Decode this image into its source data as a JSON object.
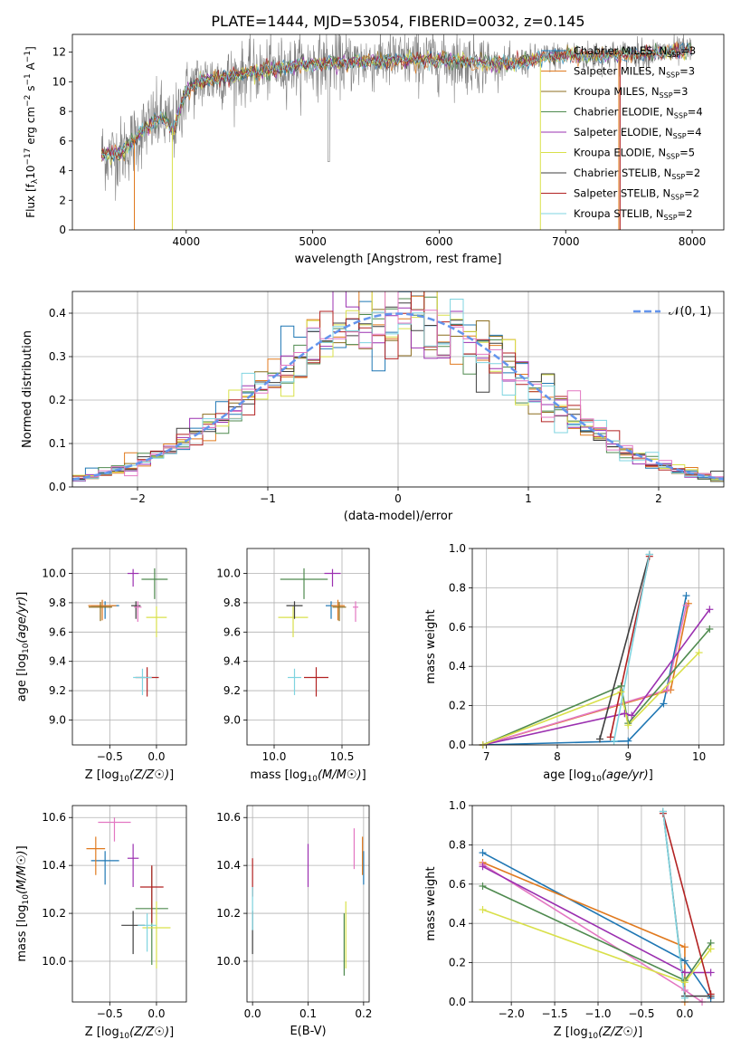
{
  "figure": {
    "title": "PLATE=1444, MJD=53054, FIBERID=0032, z=0.145"
  },
  "colors": {
    "data": "#7f7f7f",
    "fits": [
      "#1f77b4",
      "#e07a1f",
      "#8c6d1f",
      "#4f8a4f",
      "#9b30b0",
      "#d9e04a",
      "#3f3f3f",
      "#b22222",
      "#7fd4e0"
    ],
    "normal": "#6495ed"
  },
  "chart_data": [
    {
      "id": "spectrum",
      "type": "line",
      "title": "PLATE=1444, MJD=53054, FIBERID=0032, z=0.145",
      "xlabel": "wavelength [Angstrom, rest frame]",
      "ylabel": "Flux [f_λ 10^-17 erg cm^-2 s^-1 A^-1]",
      "xlim": [
        3100,
        8250
      ],
      "ylim": [
        0,
        13.2
      ],
      "xticks": [
        4000,
        5000,
        6000,
        7000,
        8000
      ],
      "yticks": [
        0,
        2,
        4,
        6,
        8,
        10,
        12
      ],
      "grid": false,
      "legend_position": "top-right",
      "series": [
        {
          "name": "Chabrier MILES, N_SSP=3",
          "color": "#1f77b4"
        },
        {
          "name": "Salpeter MILES, N_SSP=3",
          "color": "#e07a1f"
        },
        {
          "name": "Kroupa MILES, N_SSP=3",
          "color": "#8c6d1f"
        },
        {
          "name": "Chabrier ELODIE, N_SSP=4",
          "color": "#4f8a4f"
        },
        {
          "name": "Salpeter ELODIE, N_SSP=4",
          "color": "#9b30b0"
        },
        {
          "name": "Kroupa ELODIE, N_SSP=5",
          "color": "#d9e04a"
        },
        {
          "name": "Chabrier STELIB, N_SSP=2",
          "color": "#3f3f3f"
        },
        {
          "name": "Salpeter STELIB, N_SSP=2",
          "color": "#b22222"
        },
        {
          "name": "Kroupa STELIB, N_SSP=2",
          "color": "#7fd4e0"
        }
      ],
      "continuum": {
        "x": [
          3330,
          3400,
          3500,
          3600,
          3700,
          3800,
          3900,
          4000,
          4100,
          4300,
          4500,
          4800,
          5000,
          5200,
          5500,
          5800,
          6000,
          6300,
          6600,
          6800,
          7000,
          7200,
          7400,
          7600,
          7800,
          8000
        ],
        "y": [
          5.2,
          5.0,
          5.3,
          6.2,
          7.0,
          7.6,
          6.8,
          9.4,
          10.0,
          10.3,
          10.6,
          11.0,
          11.2,
          11.3,
          11.4,
          11.5,
          11.5,
          11.3,
          11.2,
          11.6,
          11.8,
          11.7,
          11.8,
          11.9,
          12.0,
          12.1
        ]
      }
    },
    {
      "id": "residuals",
      "type": "bar",
      "xlabel": "(data-model)/error",
      "ylabel": "Normed distribution",
      "xlim": [
        -2.5,
        2.5
      ],
      "ylim": [
        0,
        0.45
      ],
      "xticks": [
        -2,
        -1,
        0,
        1,
        2
      ],
      "yticks": [
        0.0,
        0.1,
        0.2,
        0.3,
        0.4
      ],
      "grid": true,
      "legend_position": "top-right",
      "legend_label": "𝒩(0, 1)",
      "bins": 50,
      "normal": {
        "mean": 0,
        "sigma": 1
      }
    },
    {
      "id": "age_vs_Z",
      "type": "scatter",
      "xlabel": "Z [log10(Z/Z☉)]",
      "ylabel": "age  [log10(age/yr)]",
      "xlim": [
        -0.9,
        0.32
      ],
      "ylim": [
        8.83,
        10.17
      ],
      "xticks": [
        -0.5,
        0.0
      ],
      "yticks": [
        9.0,
        9.2,
        9.4,
        9.6,
        9.8,
        10.0
      ],
      "grid": true,
      "points": [
        {
          "x": -0.55,
          "y": 9.78,
          "dx": 0.3,
          "dy": 0.06,
          "color": "#1f77b4"
        },
        {
          "x": -0.58,
          "y": 9.78,
          "dx": 0.3,
          "dy": 0.08,
          "color": "#e07a1f"
        },
        {
          "x": -0.6,
          "y": 9.77,
          "dx": 0.25,
          "dy": 0.07,
          "color": "#8c6d1f"
        },
        {
          "x": -0.02,
          "y": 9.96,
          "dx": 0.28,
          "dy": 0.15,
          "color": "#4f8a4f"
        },
        {
          "x": -0.25,
          "y": 10.0,
          "dx": 0.12,
          "dy": 0.06,
          "color": "#9b30b0"
        },
        {
          "x": 0.0,
          "y": 9.7,
          "dx": 0.22,
          "dy": 0.15,
          "color": "#d9e04a"
        },
        {
          "x": -0.22,
          "y": 9.78,
          "dx": 0.1,
          "dy": 0.06,
          "color": "#3f3f3f"
        },
        {
          "x": -0.1,
          "y": 9.29,
          "dx": 0.25,
          "dy": 0.14,
          "color": "#b22222"
        },
        {
          "x": -0.15,
          "y": 9.29,
          "dx": 0.2,
          "dy": 0.12,
          "color": "#7fd4e0"
        },
        {
          "x": -0.2,
          "y": 9.77,
          "dx": 0.08,
          "dy": 0.08,
          "color": "#e377c2"
        }
      ]
    },
    {
      "id": "age_vs_mass",
      "type": "scatter",
      "xlabel": "mass [log10(M/M☉)]",
      "ylabel": "",
      "xlim": [
        9.8,
        10.7
      ],
      "ylim": [
        8.83,
        10.17
      ],
      "xticks": [
        10.0,
        10.5
      ],
      "yticks": [
        9.0,
        9.2,
        9.4,
        9.6,
        9.8,
        10.0
      ],
      "grid": true,
      "points": [
        {
          "x": 10.42,
          "y": 9.78,
          "dx": 0.08,
          "dy": 0.06,
          "color": "#1f77b4"
        },
        {
          "x": 10.47,
          "y": 9.78,
          "dx": 0.1,
          "dy": 0.08,
          "color": "#e07a1f"
        },
        {
          "x": 10.48,
          "y": 9.77,
          "dx": 0.1,
          "dy": 0.07,
          "color": "#8c6d1f"
        },
        {
          "x": 10.22,
          "y": 9.96,
          "dx": 0.35,
          "dy": 0.15,
          "color": "#4f8a4f"
        },
        {
          "x": 10.43,
          "y": 10.0,
          "dx": 0.12,
          "dy": 0.06,
          "color": "#9b30b0"
        },
        {
          "x": 10.14,
          "y": 9.7,
          "dx": 0.22,
          "dy": 0.15,
          "color": "#d9e04a"
        },
        {
          "x": 10.15,
          "y": 9.78,
          "dx": 0.12,
          "dy": 0.06,
          "color": "#3f3f3f"
        },
        {
          "x": 10.31,
          "y": 9.29,
          "dx": 0.18,
          "dy": 0.14,
          "color": "#b22222"
        },
        {
          "x": 10.15,
          "y": 9.29,
          "dx": 0.1,
          "dy": 0.12,
          "color": "#7fd4e0"
        },
        {
          "x": 10.6,
          "y": 9.77,
          "dx": 0.04,
          "dy": 0.08,
          "color": "#e377c2"
        }
      ]
    },
    {
      "id": "weight_vs_age",
      "type": "line",
      "xlabel": "age  [log10(age/yr)]",
      "ylabel": "mass weight",
      "xlim": [
        6.8,
        10.35
      ],
      "ylim": [
        0,
        1.0
      ],
      "xticks": [
        7,
        8,
        9,
        10
      ],
      "yticks": [
        0.0,
        0.2,
        0.4,
        0.6,
        0.8,
        1.0
      ],
      "grid": true,
      "series": [
        {
          "color": "#1f77b4",
          "x": [
            6.95,
            9.0,
            9.5,
            9.82
          ],
          "y": [
            0.0,
            0.02,
            0.21,
            0.76
          ]
        },
        {
          "color": "#e07a1f",
          "x": [
            6.95,
            9.6,
            9.85
          ],
          "y": [
            0.0,
            0.28,
            0.72
          ]
        },
        {
          "color": "#e377c2",
          "x": [
            6.95,
            9.55,
            9.82
          ],
          "y": [
            0.0,
            0.28,
            0.71
          ]
        },
        {
          "color": "#4f8a4f",
          "x": [
            6.95,
            8.9,
            9.0,
            10.15
          ],
          "y": [
            0.0,
            0.3,
            0.11,
            0.59
          ]
        },
        {
          "color": "#9b30b0",
          "x": [
            6.95,
            8.95,
            9.05,
            10.15
          ],
          "y": [
            0.0,
            0.16,
            0.15,
            0.69
          ]
        },
        {
          "color": "#d9e04a",
          "x": [
            6.95,
            8.9,
            9.0,
            10.0
          ],
          "y": [
            0.0,
            0.27,
            0.1,
            0.47
          ]
        },
        {
          "color": "#3f3f3f",
          "x": [
            8.6,
            9.3
          ],
          "y": [
            0.03,
            0.97
          ]
        },
        {
          "color": "#b22222",
          "x": [
            8.75,
            9.3
          ],
          "y": [
            0.04,
            0.96
          ]
        },
        {
          "color": "#7fd4e0",
          "x": [
            8.8,
            9.3
          ],
          "y": [
            0.02,
            0.97
          ]
        }
      ]
    },
    {
      "id": "mass_vs_Z",
      "type": "scatter",
      "xlabel": "Z [log10(Z/Z☉)]",
      "ylabel": "mass [log10(M/M☉)]",
      "xlim": [
        -0.9,
        0.32
      ],
      "ylim": [
        9.83,
        10.65
      ],
      "xticks": [
        -0.5,
        0.0
      ],
      "yticks": [
        10.0,
        10.2,
        10.4,
        10.6
      ],
      "grid": true,
      "points": [
        {
          "x": -0.55,
          "y": 10.42,
          "dx": 0.3,
          "dy": 0.08,
          "color": "#1f77b4"
        },
        {
          "x": -0.65,
          "y": 10.47,
          "dx": 0.2,
          "dy": 0.1,
          "color": "#e07a1f"
        },
        {
          "x": -0.25,
          "y": 10.43,
          "dx": 0.12,
          "dy": 0.12,
          "color": "#9b30b0"
        },
        {
          "x": -0.05,
          "y": 10.22,
          "dx": 0.35,
          "dy": 0.35,
          "color": "#4f8a4f"
        },
        {
          "x": 0.0,
          "y": 10.14,
          "dx": 0.3,
          "dy": 0.22,
          "color": "#d9e04a"
        },
        {
          "x": -0.25,
          "y": 10.15,
          "dx": 0.25,
          "dy": 0.12,
          "color": "#3f3f3f"
        },
        {
          "x": -0.05,
          "y": 10.31,
          "dx": 0.25,
          "dy": 0.18,
          "color": "#b22222"
        },
        {
          "x": -0.1,
          "y": 10.15,
          "dx": 0.2,
          "dy": 0.1,
          "color": "#7fd4e0"
        },
        {
          "x": -0.45,
          "y": 10.58,
          "dx": 0.35,
          "dy": 0.04,
          "color": "#e377c2"
        }
      ]
    },
    {
      "id": "mass_vs_ebv",
      "type": "scatter",
      "xlabel": "E(B-V)",
      "ylabel": "",
      "xlim": [
        -0.01,
        0.21
      ],
      "ylim": [
        9.83,
        10.65
      ],
      "xticks": [
        0.0,
        0.1,
        0.2
      ],
      "yticks": [
        10.0,
        10.2,
        10.4,
        10.6
      ],
      "grid": true,
      "points": [
        {
          "x": 0.2,
          "y": 10.42,
          "dy": 0.08,
          "color": "#1f77b4"
        },
        {
          "x": 0.198,
          "y": 10.47,
          "dy": 0.1,
          "color": "#e07a1f"
        },
        {
          "x": 0.1,
          "y": 10.43,
          "dy": 0.12,
          "color": "#9b30b0"
        },
        {
          "x": 0.165,
          "y": 10.1,
          "dy": 0.2,
          "color": "#4f8a4f"
        },
        {
          "x": 0.168,
          "y": 10.14,
          "dy": 0.22,
          "color": "#d9e04a"
        },
        {
          "x": 0.0,
          "y": 10.15,
          "dy": 0.12,
          "color": "#3f3f3f"
        },
        {
          "x": 0.0,
          "y": 10.38,
          "dy": 0.1,
          "color": "#b22222"
        },
        {
          "x": 0.0,
          "y": 10.25,
          "dy": 0.12,
          "color": "#7fd4e0"
        },
        {
          "x": 0.183,
          "y": 10.5,
          "dy": 0.11,
          "color": "#e377c2"
        }
      ]
    },
    {
      "id": "weight_vs_Z",
      "type": "line",
      "xlabel": "Z [log10(Z/Z☉)]",
      "ylabel": "mass weight",
      "xlim": [
        -2.45,
        0.45
      ],
      "ylim": [
        0,
        1.0
      ],
      "xticks": [
        -2.0,
        -1.5,
        -1.0,
        -0.5,
        0.0
      ],
      "yticks": [
        0.0,
        0.2,
        0.4,
        0.6,
        0.8,
        1.0
      ],
      "grid": true,
      "series": [
        {
          "color": "#1f77b4",
          "x": [
            -2.33,
            0.0,
            0.3
          ],
          "y": [
            0.76,
            0.21,
            0.02
          ]
        },
        {
          "color": "#e07a1f",
          "x": [
            -2.33,
            0.0,
            0.0
          ],
          "y": [
            0.71,
            0.28,
            0.0
          ]
        },
        {
          "color": "#e377c2",
          "x": [
            -2.33,
            0.0,
            0.2
          ],
          "y": [
            0.7,
            0.06,
            0.0
          ]
        },
        {
          "color": "#4f8a4f",
          "x": [
            -2.33,
            0.0,
            0.3
          ],
          "y": [
            0.59,
            0.11,
            0.3
          ]
        },
        {
          "color": "#9b30b0",
          "x": [
            -2.33,
            0.0,
            0.3
          ],
          "y": [
            0.69,
            0.15,
            0.15
          ]
        },
        {
          "color": "#d9e04a",
          "x": [
            -2.33,
            0.0,
            0.3
          ],
          "y": [
            0.47,
            0.1,
            0.27
          ]
        },
        {
          "color": "#3f3f3f",
          "x": [
            -0.25,
            0.0,
            0.3
          ],
          "y": [
            0.97,
            0.03,
            0.03
          ]
        },
        {
          "color": "#b22222",
          "x": [
            -0.25,
            0.3
          ],
          "y": [
            0.96,
            0.04
          ]
        },
        {
          "color": "#7fd4e0",
          "x": [
            -0.25,
            0.0
          ],
          "y": [
            0.97,
            0.02
          ]
        }
      ]
    }
  ]
}
